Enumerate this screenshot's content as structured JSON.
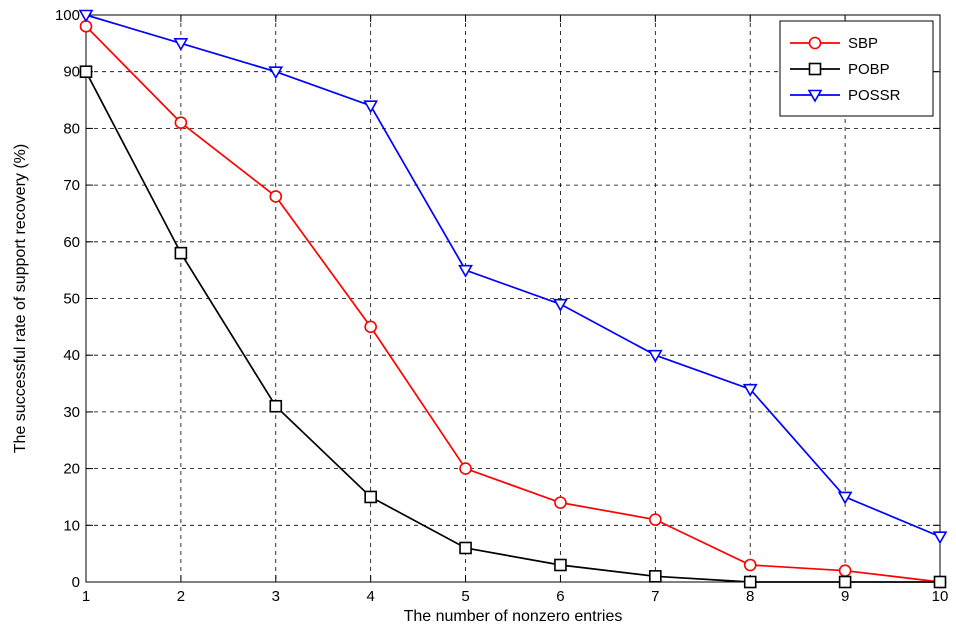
{
  "chart_data": {
    "type": "line",
    "title": "",
    "xlabel": "The number of nonzero entries",
    "ylabel": "The successful rate of support recovery (%)",
    "x": [
      1,
      2,
      3,
      4,
      5,
      6,
      7,
      8,
      9,
      10
    ],
    "xlim": [
      1,
      10
    ],
    "ylim": [
      0,
      100
    ],
    "xticks": [
      "1",
      "2",
      "3",
      "4",
      "5",
      "6",
      "7",
      "8",
      "9",
      "10"
    ],
    "yticks": [
      "0",
      "10",
      "20",
      "30",
      "40",
      "50",
      "60",
      "70",
      "80",
      "90",
      "100"
    ],
    "grid": true,
    "legend_position": "top-right",
    "series": [
      {
        "name": "SBP",
        "color": "#ff0000",
        "marker": "circle",
        "values": [
          98,
          81,
          68,
          45,
          20,
          14,
          11,
          3,
          2,
          0
        ]
      },
      {
        "name": "POBP",
        "color": "#000000",
        "marker": "square",
        "values": [
          90,
          58,
          31,
          15,
          6,
          3,
          1,
          0,
          0,
          0
        ]
      },
      {
        "name": "POSSR",
        "color": "#0000ff",
        "marker": "triangle-down",
        "values": [
          100,
          95,
          90,
          84,
          55,
          49,
          40,
          34,
          15,
          8
        ]
      }
    ]
  }
}
